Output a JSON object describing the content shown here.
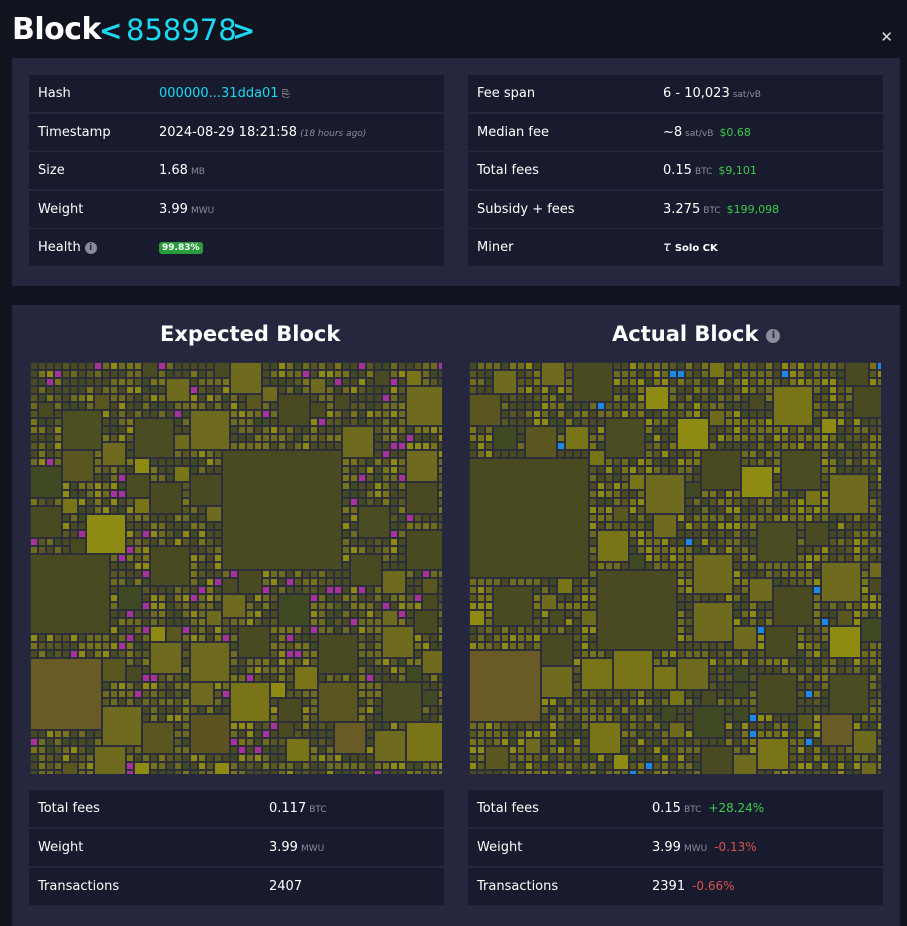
{
  "header": {
    "title": "Block",
    "height": "858978",
    "prev_arrow": "<",
    "next_arrow": ">",
    "close": "✕"
  },
  "details_left": [
    {
      "label": "Hash",
      "value": "000000...31dda01",
      "copy_icon": "⎘"
    },
    {
      "label": "Timestamp",
      "value": "2024-08-29 18:21:58",
      "note": "(18 hours ago)"
    },
    {
      "label": "Size",
      "value": "1.68",
      "unit": "MB"
    },
    {
      "label": "Weight",
      "value": "3.99",
      "unit": "MWU"
    },
    {
      "label": "Health",
      "value": "99.83%",
      "info": "i"
    }
  ],
  "details_right": [
    {
      "label": "Fee span",
      "value": "6 - 10,023",
      "unit": "sat/vB"
    },
    {
      "label": "Median fee",
      "value": "~8",
      "unit": "sat/vB",
      "fiat": "$0.68"
    },
    {
      "label": "Total fees",
      "value": "0.15",
      "unit": "BTC",
      "fiat": "$9,101"
    },
    {
      "label": "Subsidy + fees",
      "value": "3.275",
      "unit": "BTC",
      "fiat": "$199,098"
    },
    {
      "label": "Miner",
      "value": "Solo CK",
      "logo": "τ"
    }
  ],
  "expected": {
    "title": "Expected Block",
    "stats": [
      {
        "label": "Total fees",
        "value": "0.117",
        "unit": "BTC"
      },
      {
        "label": "Weight",
        "value": "3.99",
        "unit": "MWU"
      },
      {
        "label": "Transactions",
        "value": "2407"
      }
    ]
  },
  "actual": {
    "title": "Actual Block",
    "info": "i",
    "stats": [
      {
        "label": "Total fees",
        "value": "0.15",
        "unit": "BTC",
        "delta": "+28.24%"
      },
      {
        "label": "Weight",
        "value": "3.99",
        "unit": "MWU",
        "delta": "-0.13%"
      },
      {
        "label": "Transactions",
        "value": "2391",
        "delta": "-0.66%"
      }
    ]
  },
  "colors": {
    "accent": "#1bd8f4",
    "fee_low": "#4a4a22",
    "fee_mid": "#6e6b1f",
    "fee_high": "#8f8a12",
    "missing": "#a8329b",
    "added": "#1e88e5"
  }
}
